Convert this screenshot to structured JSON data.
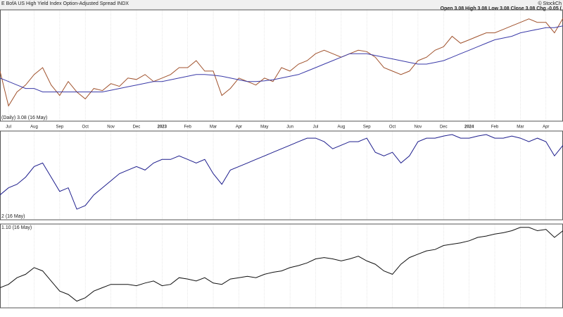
{
  "chart_data": [
    {
      "type": "line",
      "title": "E BofA US High Yield Index Option-Adjusted Spread INDX",
      "credit": "© StockCh",
      "quote": "Open 3.08  High 3.08  Low 3.08  Close 3.08  Chg -0.05 (",
      "label": "(Daily) 3.08 (16 May)",
      "categories": [
        null,
        "Jul",
        null,
        null,
        "Aug",
        null,
        null,
        "Sep",
        null,
        null,
        "Oct",
        null,
        null,
        "Nov",
        null,
        null,
        "Dec",
        null,
        null,
        "2023",
        null,
        null,
        "Feb",
        null,
        null,
        "Mar",
        null,
        null,
        "Apr",
        null,
        null,
        "May",
        null,
        null,
        "Jun",
        null,
        null,
        "Jul",
        null,
        null,
        "Aug",
        null,
        null,
        "Sep",
        null,
        null,
        "Oct",
        null,
        null,
        "Nov",
        null,
        null,
        "Dec",
        null,
        null,
        "2024",
        null,
        null,
        "Feb",
        null,
        null,
        "Mar",
        null,
        null,
        "Apr",
        null,
        null
      ],
      "ylim": [
        6.04,
        2.84
      ],
      "series": [
        {
          "color": "#a0522d",
          "values": [
            4.6,
            5.6,
            5.2,
            5.0,
            4.7,
            4.5,
            5.0,
            5.3,
            4.9,
            5.2,
            5.4,
            5.1,
            5.16,
            4.96,
            5.04,
            4.8,
            4.84,
            4.7,
            4.9,
            4.8,
            4.7,
            4.5,
            4.5,
            4.3,
            4.6,
            4.6,
            5.3,
            5.1,
            4.8,
            4.9,
            5.0,
            4.8,
            4.9,
            4.5,
            4.6,
            4.4,
            4.3,
            4.1,
            4.0,
            4.1,
            4.2,
            4.1,
            4.0,
            4.04,
            4.2,
            4.5,
            4.6,
            4.7,
            4.6,
            4.3,
            4.2,
            4.0,
            3.9,
            3.6,
            3.8,
            3.7,
            3.6,
            3.5,
            3.5,
            3.4,
            3.3,
            3.2,
            3.1,
            3.2,
            3.2,
            3.5,
            3.08
          ]
        },
        {
          "color": "#3a3aa8",
          "values": [
            4.8,
            4.9,
            5.0,
            5.1,
            5.1,
            5.2,
            5.2,
            5.2,
            5.2,
            5.2,
            5.2,
            5.2,
            5.2,
            5.15,
            5.1,
            5.05,
            5.0,
            4.95,
            4.9,
            4.9,
            4.85,
            4.8,
            4.75,
            4.7,
            4.7,
            4.72,
            4.75,
            4.8,
            4.85,
            4.9,
            4.9,
            4.88,
            4.85,
            4.8,
            4.75,
            4.7,
            4.6,
            4.5,
            4.4,
            4.3,
            4.2,
            4.1,
            4.1,
            4.1,
            4.15,
            4.2,
            4.25,
            4.3,
            4.35,
            4.4,
            4.4,
            4.35,
            4.3,
            4.2,
            4.1,
            4.0,
            3.9,
            3.8,
            3.7,
            3.65,
            3.6,
            3.5,
            3.45,
            3.4,
            3.35,
            3.35,
            3.3
          ]
        }
      ]
    },
    {
      "type": "line",
      "label": "2 (16 May)",
      "ylim": [
        0,
        125
      ],
      "series": [
        {
          "color": "#1c1c8c",
          "values": [
            35,
            45,
            50,
            60,
            75,
            80,
            60,
            40,
            45,
            15,
            20,
            35,
            45,
            55,
            65,
            70,
            75,
            70,
            80,
            85,
            85,
            90,
            85,
            80,
            85,
            65,
            50,
            70,
            75,
            80,
            85,
            90,
            95,
            100,
            105,
            110,
            115,
            115,
            110,
            100,
            105,
            110,
            110,
            115,
            95,
            90,
            95,
            80,
            90,
            110,
            115,
            115,
            118,
            120,
            115,
            115,
            118,
            120,
            115,
            115,
            118,
            115,
            110,
            115,
            110,
            90,
            105
          ]
        }
      ]
    },
    {
      "type": "line",
      "label": "1.10 (16 May)",
      "ylim": [
        0,
        125
      ],
      "series": [
        {
          "color": "#111111",
          "values": [
            30,
            35,
            45,
            50,
            60,
            55,
            40,
            25,
            20,
            10,
            15,
            25,
            30,
            35,
            35,
            35,
            33,
            37,
            40,
            33,
            35,
            45,
            43,
            40,
            45,
            37,
            35,
            43,
            45,
            47,
            45,
            50,
            53,
            55,
            60,
            63,
            67,
            73,
            75,
            73,
            70,
            73,
            77,
            70,
            65,
            55,
            50,
            65,
            75,
            80,
            85,
            87,
            93,
            95,
            97,
            100,
            105,
            107,
            110,
            112,
            115,
            120,
            120,
            115,
            117,
            105,
            115
          ]
        }
      ]
    }
  ]
}
